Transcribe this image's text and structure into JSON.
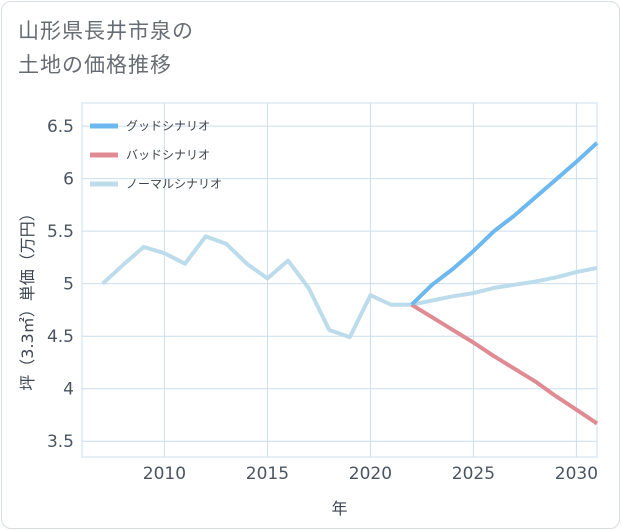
{
  "page": {
    "title_line1": "山形県長井市泉の",
    "title_line2": "土地の価格推移"
  },
  "colors": {
    "good": "#6db8ef",
    "bad": "#e08a93",
    "normal": "#bcdcec",
    "grid": "#ccdeed"
  },
  "chart_data": {
    "type": "line",
    "title": "山形県長井市泉の土地の価格推移",
    "xlabel": "年",
    "ylabel": "坪（3.3㎡）単価（万円）",
    "xlim": [
      2006,
      2031
    ],
    "ylim": [
      3.35,
      6.72
    ],
    "xticks": [
      2010,
      2015,
      2020,
      2025,
      2030
    ],
    "yticks": [
      3.5,
      4,
      4.5,
      5,
      5.5,
      6,
      6.5
    ],
    "ytick_labels": [
      "3.5",
      "4",
      "4.5",
      "5",
      "5.5",
      "6",
      "6.5"
    ],
    "grid": true,
    "legend_position": "top-left",
    "series": [
      {
        "key": "good",
        "name": "グッドシナリオ",
        "x": [
          2022,
          2023,
          2024,
          2025,
          2026,
          2027,
          2028,
          2029,
          2030,
          2031
        ],
        "y": [
          4.8,
          4.99,
          5.14,
          5.31,
          5.5,
          5.65,
          5.82,
          5.99,
          6.16,
          6.34
        ]
      },
      {
        "key": "bad",
        "name": "バッドシナリオ",
        "x": [
          2022,
          2023,
          2024,
          2025,
          2026,
          2027,
          2028,
          2029,
          2030,
          2031
        ],
        "y": [
          4.8,
          4.68,
          4.56,
          4.44,
          4.31,
          4.19,
          4.07,
          3.93,
          3.8,
          3.67
        ]
      },
      {
        "key": "normal",
        "name": "ノーマルシナリオ",
        "x": [
          2007,
          2008,
          2009,
          2010,
          2011,
          2012,
          2013,
          2014,
          2015,
          2016,
          2017,
          2018,
          2019,
          2020,
          2021,
          2022,
          2023,
          2024,
          2025,
          2026,
          2027,
          2028,
          2029,
          2030,
          2031
        ],
        "y": [
          5.0,
          5.18,
          5.35,
          5.29,
          5.19,
          5.45,
          5.38,
          5.19,
          5.05,
          5.22,
          4.96,
          4.56,
          4.49,
          4.89,
          4.8,
          4.8,
          4.84,
          4.88,
          4.91,
          4.96,
          4.99,
          5.02,
          5.06,
          5.11,
          5.15
        ]
      }
    ]
  }
}
